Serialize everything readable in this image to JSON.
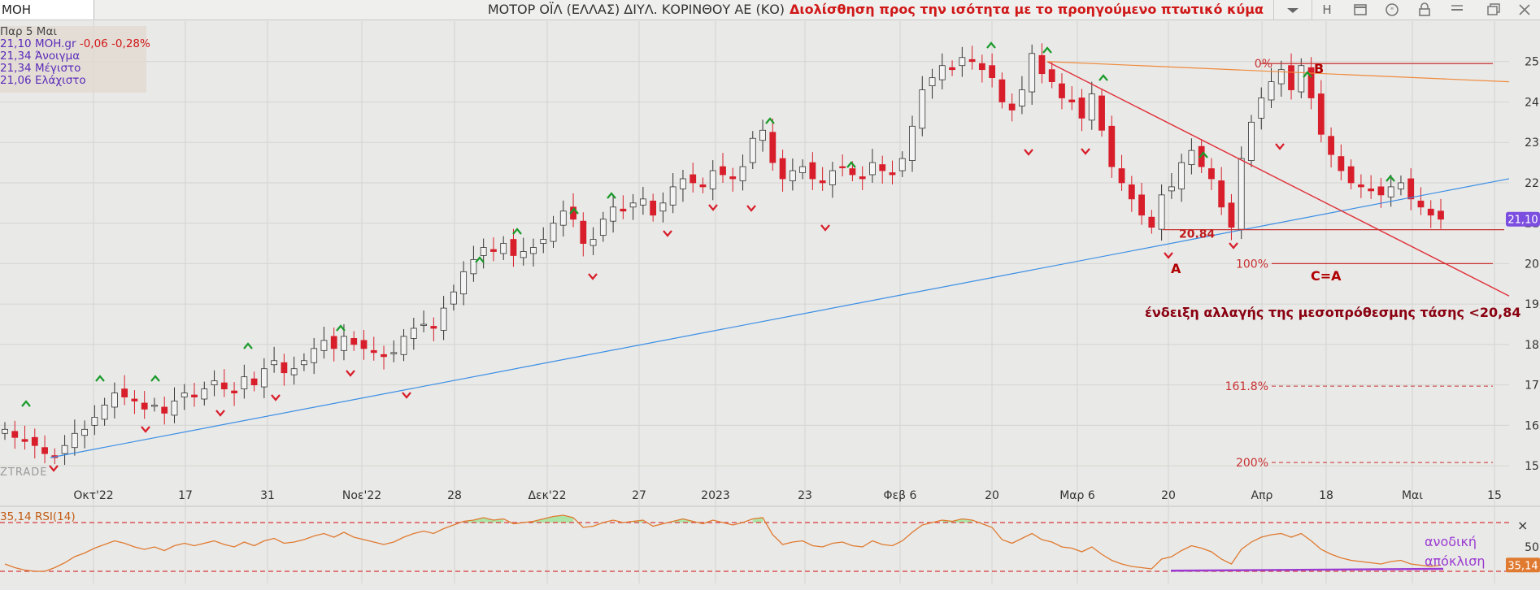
{
  "window": {
    "symbol_tab": "MOH",
    "title_company": "ΜΟΤΟΡ ΟΪΛ (ΕΛΛΑΣ) ΔΙΥΛ. ΚΟΡΙΝΘΟΥ ΑΕ (ΚΟ)",
    "title_caption": "Διολίσθηση προς την ισότητα με το προηγούμενο πτωτικό κύμα",
    "toolbar_letter": "H",
    "toolbar_icons": [
      "chevron-down-icon",
      "window-icon",
      "quote-icon",
      "lock-icon",
      "menu-icon",
      "restore-icon",
      "close-icon"
    ]
  },
  "info": {
    "date": "Παρ 5 Μαι",
    "last": "21,10 MOH.gr",
    "change": "-0,06 -0,28%",
    "open": "21,34 Άνοιγμα",
    "high": "21,34 Μέγιστο",
    "low": "21,06 Ελάχιστο"
  },
  "brand": "ZTRADE",
  "colors": {
    "up_candle": "#f4f4f4",
    "down_candle": "#d81e2a",
    "trendline_blue": "#3a8ee6",
    "fan_orange": "#f08a3c",
    "downtrend_red": "#e0303a",
    "rsi_line": "#e07a30",
    "rsi_overbought_fill": "#9ee39a",
    "divergence_line": "#9b3bd1",
    "price_badge": "#7c4ee0",
    "rsi_badge": "#e07a30"
  },
  "chart_data": [
    {
      "type": "candlestick",
      "ylim": [
        14.7,
        26.0
      ],
      "y_ticks": [
        15,
        16,
        17,
        18,
        19,
        20,
        21,
        22,
        23,
        24,
        25
      ],
      "x_tick_labels": [
        "Οκτ'22",
        "17",
        "31",
        "Νοε'22",
        "28",
        "Δεκ'22",
        "27",
        "2023",
        "23",
        "Φεβ 6",
        "20",
        "Μαρ 6",
        "20",
        "Απρ",
        "18",
        "Μαι",
        "15"
      ],
      "last_price_label": "21,10",
      "close_series": [
        15.9,
        15.7,
        15.6,
        15.5,
        15.3,
        15.2,
        15.5,
        15.8,
        15.9,
        16.2,
        16.5,
        16.8,
        16.7,
        16.6,
        16.4,
        16.5,
        16.3,
        16.6,
        16.8,
        16.7,
        16.9,
        17.1,
        16.9,
        16.8,
        17.2,
        17.0,
        17.4,
        17.6,
        17.3,
        17.4,
        17.6,
        17.9,
        18.1,
        17.9,
        18.2,
        18.0,
        17.9,
        17.8,
        17.7,
        17.8,
        18.2,
        18.4,
        18.5,
        18.4,
        18.9,
        19.3,
        19.8,
        20.1,
        20.4,
        20.3,
        20.5,
        20.2,
        20.3,
        20.4,
        20.6,
        21.0,
        21.3,
        21.1,
        20.5,
        20.6,
        21.1,
        21.4,
        21.3,
        21.5,
        21.6,
        21.2,
        21.5,
        21.9,
        22.1,
        22.0,
        21.9,
        22.3,
        22.2,
        22.1,
        22.4,
        23.1,
        23.3,
        22.5,
        22.1,
        22.3,
        22.4,
        22.1,
        22.0,
        22.3,
        22.4,
        22.2,
        22.1,
        22.5,
        22.3,
        22.2,
        22.6,
        23.4,
        24.3,
        24.6,
        24.9,
        24.8,
        25.1,
        25.0,
        24.8,
        24.6,
        24.0,
        23.8,
        24.3,
        25.2,
        24.7,
        24.5,
        24.1,
        24.0,
        23.6,
        24.2,
        23.3,
        22.4,
        22.0,
        21.6,
        21.2,
        20.9,
        21.7,
        21.9,
        22.5,
        22.8,
        22.4,
        22.1,
        21.4,
        20.9,
        22.6,
        23.5,
        24.1,
        24.5,
        24.8,
        24.3,
        24.9,
        24.1,
        23.2,
        22.7,
        22.3,
        22.0,
        21.9,
        21.8,
        21.7,
        21.9,
        22.0,
        21.6,
        21.4,
        21.2,
        21.1
      ],
      "annotations": {
        "point_A": {
          "label": "A",
          "price_label": "20.84",
          "value": 20.84
        },
        "point_B": {
          "label": "B"
        },
        "target_label": "C=A",
        "note": "ένδειξη αλλαγής της μεσοπρόθεσμης τάσης  <20,84",
        "fib_levels": [
          {
            "label": "0%",
            "value": 24.95
          },
          {
            "label": "100%",
            "value": 20.0
          },
          {
            "label": "161.8%",
            "value": 16.97
          },
          {
            "label": "200%",
            "value": 15.08
          }
        ]
      }
    },
    {
      "type": "line",
      "name": "RSI(14)",
      "label": "35,14 RSI(14)",
      "ylim": [
        20,
        80
      ],
      "y_ticks": [
        50
      ],
      "levels": [
        70,
        30
      ],
      "last_value_label": "35,14",
      "divergence_label": [
        "ανοδική",
        "απόκλιση"
      ],
      "values": [
        36,
        33,
        31,
        30,
        30,
        33,
        37,
        42,
        45,
        49,
        52,
        55,
        53,
        50,
        48,
        50,
        47,
        51,
        53,
        51,
        53,
        55,
        52,
        50,
        54,
        51,
        55,
        57,
        53,
        54,
        56,
        59,
        61,
        58,
        62,
        58,
        56,
        54,
        52,
        54,
        58,
        61,
        63,
        61,
        65,
        68,
        71,
        72,
        74,
        72,
        73,
        69,
        70,
        71,
        73,
        75,
        76,
        74,
        66,
        67,
        70,
        72,
        70,
        71,
        72,
        67,
        69,
        71,
        73,
        71,
        69,
        72,
        70,
        68,
        70,
        73,
        74,
        60,
        52,
        54,
        55,
        51,
        50,
        53,
        54,
        51,
        50,
        55,
        52,
        51,
        55,
        62,
        68,
        70,
        72,
        71,
        73,
        72,
        69,
        66,
        56,
        53,
        57,
        61,
        56,
        54,
        50,
        49,
        46,
        50,
        44,
        39,
        36,
        34,
        33,
        32,
        40,
        42,
        47,
        51,
        49,
        46,
        40,
        36,
        48,
        54,
        58,
        60,
        61,
        58,
        61,
        55,
        48,
        44,
        41,
        39,
        38,
        37,
        36,
        38,
        39,
        36,
        35,
        34,
        35
      ]
    }
  ]
}
